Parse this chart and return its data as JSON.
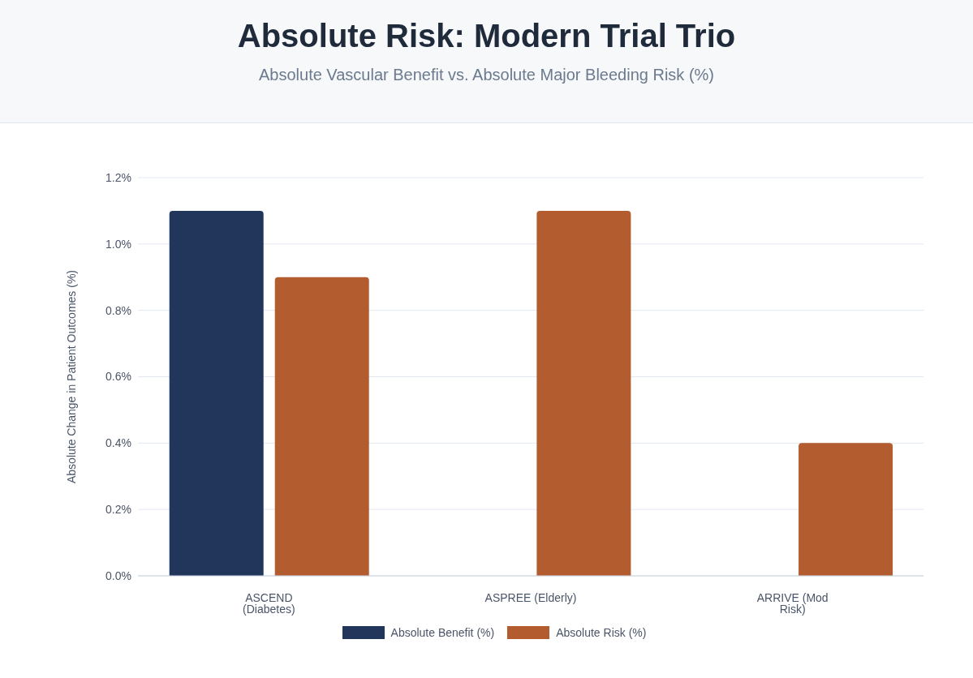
{
  "chart_data": {
    "type": "bar",
    "title": "Absolute Risk: Modern Trial Trio",
    "subtitle": "Absolute Vascular Benefit vs. Absolute Major Bleeding Risk (%)",
    "ylabel": "Absolute Change in Patient Outcomes (%)",
    "categories": [
      "ASCEND (Diabetes)",
      "ASPREE (Elderly)",
      "ARRIVE (Mod Risk)"
    ],
    "series": [
      {
        "name": "Absolute Benefit (%)",
        "color": "#22355a",
        "values": [
          1.1,
          0,
          0
        ]
      },
      {
        "name": "Absolute Risk (%)",
        "color": "#b35c30",
        "values": [
          0.9,
          1.1,
          0.4
        ]
      }
    ],
    "ylim": [
      0,
      1.2
    ],
    "yticks": [
      {
        "value": 0,
        "label": "0.0%"
      },
      {
        "value": 0.2,
        "label": "0.2%"
      },
      {
        "value": 0.4,
        "label": "0.4%"
      },
      {
        "value": 0.6,
        "label": "0.6%"
      },
      {
        "value": 0.8,
        "label": "0.8%"
      },
      {
        "value": 1,
        "label": "1.0%"
      },
      {
        "value": 1.2,
        "label": "1.2%"
      }
    ],
    "grid": "y",
    "legend": "bottom"
  }
}
